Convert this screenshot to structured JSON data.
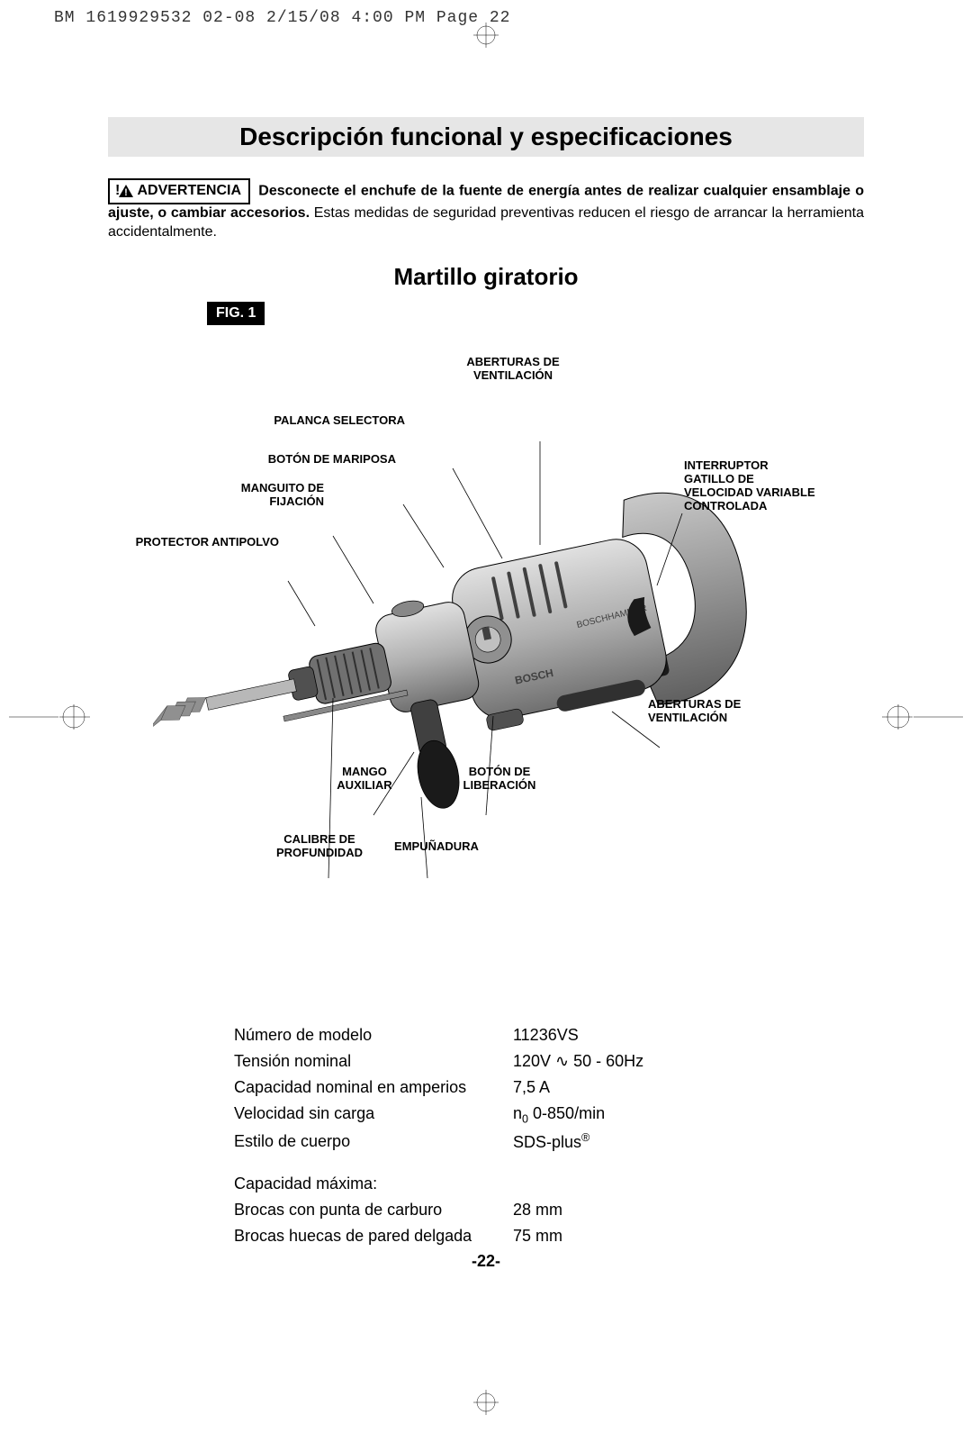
{
  "meta": {
    "header": "BM 1619929532 02-08  2/15/08  4:00 PM  Page 22"
  },
  "title": "Descripción funcional y especificaciones",
  "warning": {
    "label": "ADVERTENCIA",
    "bold_text": "Desconecte el enchufe de la fuente de energía antes de realizar cualquier ensamblaje o ajuste, o cambiar accesorios.",
    "rest_text": " Estas medidas de seguridad preventivas reducen el riesgo de arrancar la herramienta accidentalmente."
  },
  "subtitle": "Martillo giratorio",
  "figure": {
    "label": "FIG. 1",
    "callouts": {
      "aberturas_top": "ABERTURAS DE\nVENTILACIÓN",
      "palanca": "PALANCA SELECTORA",
      "mariposa": "BOTÓN DE MARIPOSA",
      "manguito": "MANGUITO DE\nFIJACIÓN",
      "protector": "PROTECTOR ANTIPOLVO",
      "interruptor": "INTERRUPTOR\nGATILLO DE\nVELOCIDAD VARIABLE\nCONTROLADA",
      "aberturas_bottom": "ABERTURAS DE\nVENTILACIÓN",
      "mango": "MANGO\nAUXILIAR",
      "liberacion": "BOTÓN DE\nLIBERACIÓN",
      "calibre": "CALIBRE DE\nPROFUNDIDAD",
      "empunadura": "EMPUÑADURA"
    }
  },
  "specs": {
    "rows": [
      {
        "label": "Número de modelo",
        "value": "11236VS"
      },
      {
        "label": "Tensión nominal",
        "value": "120V ∿ 50 - 60Hz"
      },
      {
        "label": "Capacidad nominal en amperios",
        "value": "7,5 A"
      },
      {
        "label": "Velocidad sin carga",
        "value_html": "n<sub>0</sub> 0-850/min"
      },
      {
        "label": "Estilo de cuerpo",
        "value_html": "SDS-plus<sup>®</sup>"
      }
    ],
    "capacity_header": "Capacidad máxima:",
    "capacity_rows": [
      {
        "label": "Brocas con punta de carburo",
        "value": "28 mm"
      },
      {
        "label": "Brocas huecas de pared delgada",
        "value": "75 mm"
      }
    ]
  },
  "page_number": "-22-",
  "style": {
    "colors": {
      "background": "#ffffff",
      "text": "#000000",
      "title_bg": "#e6e6e6",
      "fig_label_bg": "#000000",
      "fig_label_text": "#ffffff",
      "drill_light": "#d0d0d0",
      "drill_mid": "#a8a8a8",
      "drill_dark": "#606060",
      "drill_black": "#1a1a1a"
    },
    "fonts": {
      "title_size": 28,
      "subtitle_size": 26,
      "body_size": 16,
      "callout_size": 13,
      "spec_size": 18
    }
  }
}
